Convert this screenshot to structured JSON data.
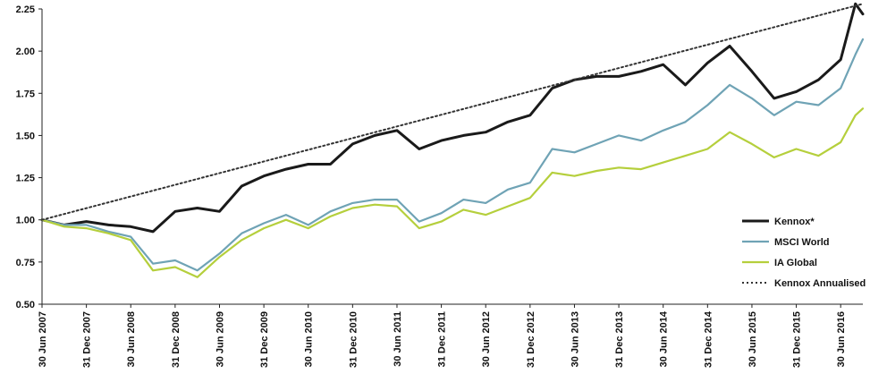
{
  "chart_data": {
    "type": "line",
    "title": "",
    "xlabel": "",
    "ylabel": "",
    "ylim": [
      0.5,
      2.25
    ],
    "y_ticks": [
      "0.50",
      "0.75",
      "1.00",
      "1.25",
      "1.50",
      "1.75",
      "2.00",
      "2.25"
    ],
    "x_ticks": [
      "30 Jun 2007",
      "31 Dec 2007",
      "30 Jun 2008",
      "31 Dec 2008",
      "30 Jun 2009",
      "31 Dec 2009",
      "30 Jun 2010",
      "31 Dec 2010",
      "30 Jun 2011",
      "31 Dec 2011",
      "30 Jun 2012",
      "31 Dec 2012",
      "30 Jun 2013",
      "31 Dec 2013",
      "30 Jun 2014",
      "31 Dec 2014",
      "30 Jun 2015",
      "31 Dec 2015",
      "30 Jun 2016"
    ],
    "x_range": [
      "30 Jun 2007",
      "30 Sep 2016"
    ],
    "grid": false,
    "legend_position": "bottom-right",
    "series": [
      {
        "name": "Kennox*",
        "color": "#1a1a1a",
        "x": [
          "Jun 2007",
          "Sep 2007",
          "Dec 2007",
          "Mar 2008",
          "Jun 2008",
          "Sep 2008",
          "Dec 2008",
          "Mar 2009",
          "Jun 2009",
          "Sep 2009",
          "Dec 2009",
          "Mar 2010",
          "Jun 2010",
          "Sep 2010",
          "Dec 2010",
          "Mar 2011",
          "Jun 2011",
          "Sep 2011",
          "Dec 2011",
          "Mar 2012",
          "Jun 2012",
          "Sep 2012",
          "Dec 2012",
          "Mar 2013",
          "Jun 2013",
          "Sep 2013",
          "Dec 2013",
          "Mar 2014",
          "Jun 2014",
          "Sep 2014",
          "Dec 2014",
          "Mar 2015",
          "Jun 2015",
          "Sep 2015",
          "Dec 2015",
          "Mar 2016",
          "Jun 2016",
          "Aug 2016",
          "Sep 2016"
        ],
        "values": [
          1.0,
          0.97,
          0.99,
          0.97,
          0.96,
          0.93,
          1.05,
          1.07,
          1.05,
          1.2,
          1.26,
          1.3,
          1.33,
          1.33,
          1.45,
          1.5,
          1.53,
          1.42,
          1.47,
          1.5,
          1.52,
          1.58,
          1.62,
          1.78,
          1.83,
          1.85,
          1.85,
          1.88,
          1.92,
          1.8,
          1.93,
          2.03,
          1.88,
          1.72,
          1.76,
          1.83,
          1.95,
          2.28,
          2.22
        ]
      },
      {
        "name": "MSCI World",
        "color": "#6fa3b5",
        "x": [
          "Jun 2007",
          "Sep 2007",
          "Dec 2007",
          "Mar 2008",
          "Jun 2008",
          "Sep 2008",
          "Dec 2008",
          "Mar 2009",
          "Jun 2009",
          "Sep 2009",
          "Dec 2009",
          "Mar 2010",
          "Jun 2010",
          "Sep 2010",
          "Dec 2010",
          "Mar 2011",
          "Jun 2011",
          "Sep 2011",
          "Dec 2011",
          "Mar 2012",
          "Jun 2012",
          "Sep 2012",
          "Dec 2012",
          "Mar 2013",
          "Jun 2013",
          "Sep 2013",
          "Dec 2013",
          "Mar 2014",
          "Jun 2014",
          "Sep 2014",
          "Dec 2014",
          "Mar 2015",
          "Jun 2015",
          "Sep 2015",
          "Dec 2015",
          "Mar 2016",
          "Jun 2016",
          "Aug 2016",
          "Sep 2016"
        ],
        "values": [
          1.0,
          0.97,
          0.97,
          0.93,
          0.9,
          0.74,
          0.76,
          0.7,
          0.8,
          0.92,
          0.98,
          1.03,
          0.97,
          1.05,
          1.1,
          1.12,
          1.12,
          0.99,
          1.04,
          1.12,
          1.1,
          1.18,
          1.22,
          1.42,
          1.4,
          1.45,
          1.5,
          1.47,
          1.53,
          1.58,
          1.68,
          1.8,
          1.72,
          1.62,
          1.7,
          1.68,
          1.78,
          1.98,
          2.07
        ]
      },
      {
        "name": "IA Global",
        "color": "#b5cf3c",
        "x": [
          "Jun 2007",
          "Sep 2007",
          "Dec 2007",
          "Mar 2008",
          "Jun 2008",
          "Sep 2008",
          "Dec 2008",
          "Mar 2009",
          "Jun 2009",
          "Sep 2009",
          "Dec 2009",
          "Mar 2010",
          "Jun 2010",
          "Sep 2010",
          "Dec 2010",
          "Mar 2011",
          "Jun 2011",
          "Sep 2011",
          "Dec 2011",
          "Mar 2012",
          "Jun 2012",
          "Sep 2012",
          "Dec 2012",
          "Mar 2013",
          "Jun 2013",
          "Sep 2013",
          "Dec 2013",
          "Mar 2014",
          "Jun 2014",
          "Sep 2014",
          "Dec 2014",
          "Mar 2015",
          "Jun 2015",
          "Sep 2015",
          "Dec 2015",
          "Mar 2016",
          "Jun 2016",
          "Aug 2016",
          "Sep 2016"
        ],
        "values": [
          1.0,
          0.96,
          0.95,
          0.92,
          0.88,
          0.7,
          0.72,
          0.66,
          0.78,
          0.88,
          0.95,
          1.0,
          0.95,
          1.02,
          1.07,
          1.09,
          1.08,
          0.95,
          0.99,
          1.06,
          1.03,
          1.08,
          1.13,
          1.28,
          1.26,
          1.29,
          1.31,
          1.3,
          1.34,
          1.38,
          1.42,
          1.52,
          1.45,
          1.37,
          1.42,
          1.38,
          1.46,
          1.62,
          1.66
        ]
      },
      {
        "name": "Kennox Annualised",
        "color": "#333333",
        "dashed": true,
        "x": [
          "Jun 2007",
          "Sep 2016"
        ],
        "values": [
          1.0,
          2.28
        ]
      }
    ]
  }
}
